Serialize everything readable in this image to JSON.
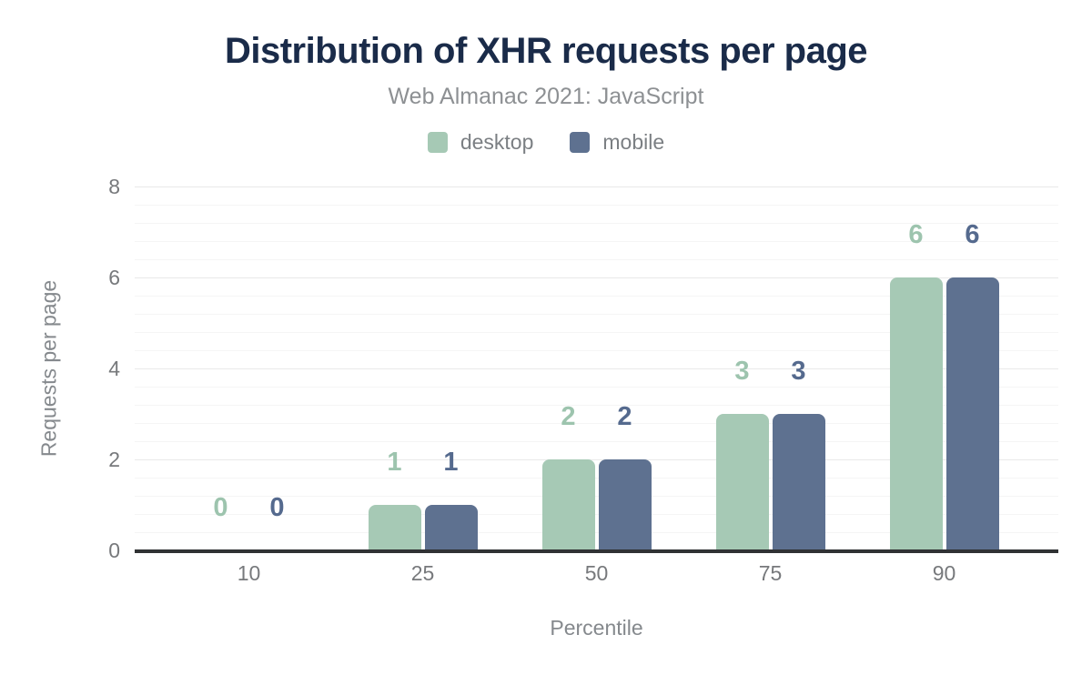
{
  "chart_data": {
    "type": "bar",
    "title": "Distribution of XHR requests per page",
    "subtitle": "Web Almanac 2021: JavaScript",
    "categories": [
      "10",
      "25",
      "50",
      "75",
      "90"
    ],
    "series": [
      {
        "name": "desktop",
        "color": "#a6c9b5",
        "label_color": "#9dc4ae",
        "values": [
          0,
          1,
          2,
          3,
          6
        ]
      },
      {
        "name": "mobile",
        "color": "#5e7190",
        "label_color": "#556a8e",
        "values": [
          0,
          1,
          2,
          3,
          6
        ]
      }
    ],
    "xlabel": "Percentile",
    "ylabel": "Requests per page",
    "ylim": [
      0,
      8
    ],
    "y_ticks": [
      0,
      2,
      4,
      6,
      8
    ],
    "y_major_step": 2,
    "y_minor_step": 0.4,
    "grid": "on",
    "legend_position": "top",
    "value_labels": "above-bars"
  },
  "colors": {
    "title": "#1a2b49",
    "subtitle": "#8d9093",
    "tick_text": "#77797c",
    "axis_title_text": "#85898d",
    "axis_line": "#303234",
    "grid_major": "#e9e9e9",
    "grid_minor": "#f5f5f5",
    "background": "#ffffff"
  }
}
